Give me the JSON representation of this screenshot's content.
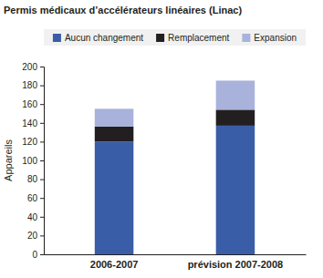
{
  "chart_data": {
    "type": "bar",
    "title": "Permis médicaux d’accélérateurs linéaires (Linac)",
    "y_label": "Appareils",
    "categories": [
      "2006-2007",
      "prévision 2007-2008"
    ],
    "series": [
      {
        "name": "Aucun changement",
        "color": "#3a5da8",
        "values": [
          120,
          137
        ]
      },
      {
        "name": "Remplacement",
        "color": "#231f20",
        "values": [
          16,
          17
        ]
      },
      {
        "name": "Expansion",
        "color": "#a9b2da",
        "values": [
          19,
          31
        ]
      }
    ],
    "stacked": true,
    "legend": "top",
    "grid": false,
    "ylim": [
      0,
      200
    ],
    "yticks": [
      0,
      20,
      40,
      60,
      80,
      100,
      120,
      140,
      160,
      180,
      200
    ]
  }
}
